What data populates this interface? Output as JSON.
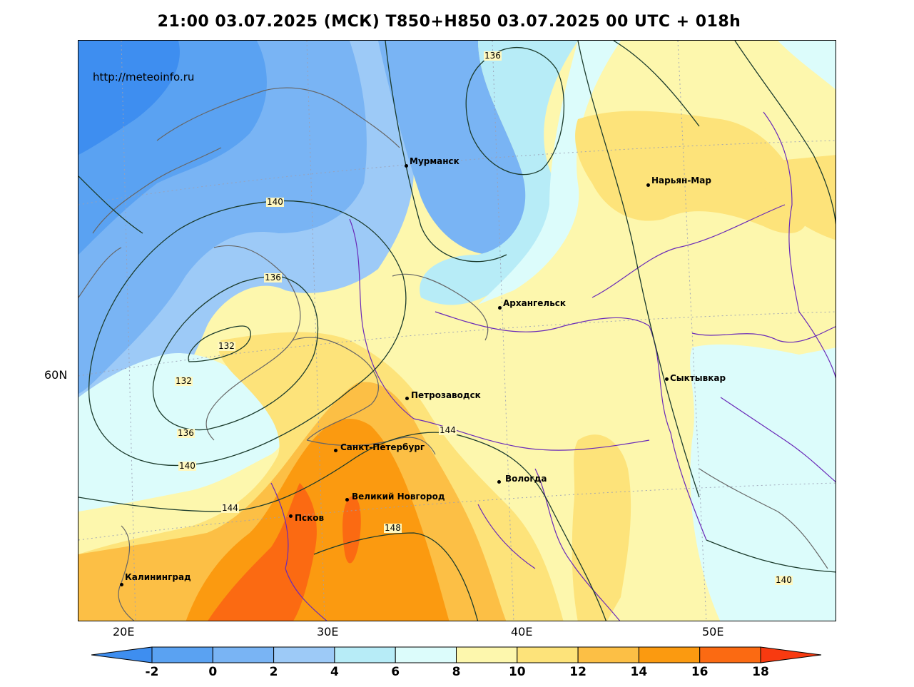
{
  "title": "21:00 03.07.2025 (МСК) T850+H850 03.07.2025 00 UTC + 018h",
  "site_url": "http://meteoinfo.ru",
  "axis": {
    "lon_labels": [
      "20E",
      "30E",
      "40E",
      "50E"
    ],
    "lat_labels": [
      "60N"
    ]
  },
  "cities": [
    {
      "name": "Мурманск"
    },
    {
      "name": "Нарьян-Мар"
    },
    {
      "name": "Архангельск"
    },
    {
      "name": "Сыктывкар"
    },
    {
      "name": "Петрозаводск"
    },
    {
      "name": "Санкт-Петербург"
    },
    {
      "name": "Вологда"
    },
    {
      "name": "Великий Новгород"
    },
    {
      "name": "Псков"
    },
    {
      "name": "Калининград"
    }
  ],
  "contour_labels": [
    "136",
    "140",
    "136",
    "132",
    "132",
    "136",
    "140",
    "144",
    "144",
    "148",
    "140"
  ],
  "colorbar": {
    "ticks": [
      "-2",
      "0",
      "2",
      "4",
      "6",
      "8",
      "10",
      "12",
      "14",
      "16",
      "18"
    ],
    "colors": [
      "#3e8ef0",
      "#5aa2f2",
      "#79b4f4",
      "#9dcaf7",
      "#b7ecf7",
      "#dcfcfb",
      "#fdf7ad",
      "#fde37a",
      "#fcbf45",
      "#fb9a10",
      "#fb6a12",
      "#f83a10"
    ]
  }
}
